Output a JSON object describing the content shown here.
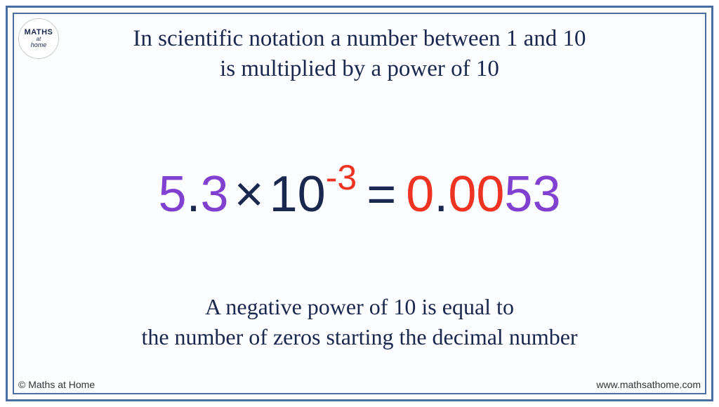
{
  "colors": {
    "border": "#4a6fa5",
    "text_dark": "#1a2850",
    "purple": "#8040d0",
    "red": "#ee3322",
    "background": "#fcfdff"
  },
  "logo": {
    "line1": "MATHS",
    "line2": "at",
    "line3": "home"
  },
  "title": {
    "line1": "In scientific notation a number between 1 and 10",
    "line2": "is multiplied by a power of 10"
  },
  "equation": {
    "coefficient_int": "5",
    "coefficient_dot": ".",
    "coefficient_dec": "3",
    "times": "×",
    "base": "10",
    "exponent": "-3",
    "equals": "=",
    "result_zero1": "0",
    "result_dot": ".",
    "result_zero2": "00",
    "result_sig": "53"
  },
  "footer": {
    "line1": "A negative power of 10 is equal to",
    "line2": "the number of zeros starting the decimal number"
  },
  "copyright": "© Maths at Home",
  "url": "www.mathsathome.com"
}
